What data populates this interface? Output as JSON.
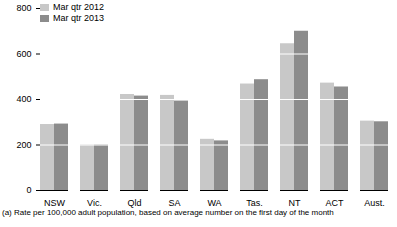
{
  "chart_data": {
    "type": "bar",
    "categories": [
      "NSW",
      "Vic.",
      "Qld",
      "SA",
      "WA",
      "Tas.",
      "NT",
      "ACT",
      "Aust."
    ],
    "series": [
      {
        "name": "Mar qtr 2012",
        "color": "#c8c8c8",
        "values": [
          290,
          200,
          422,
          418,
          225,
          468,
          645,
          472,
          305
        ]
      },
      {
        "name": "Mar qtr 2013",
        "color": "#8c8c8c",
        "values": [
          292,
          200,
          415,
          393,
          218,
          487,
          700,
          455,
          302
        ]
      }
    ],
    "ylim": [
      0,
      800
    ],
    "yticks": [
      0,
      200,
      400,
      600,
      800
    ],
    "grid": true,
    "legend": "upper left",
    "annotations": [
      "(a) Rate per 100,000 adult population, based on average number on the first day of the month"
    ]
  }
}
